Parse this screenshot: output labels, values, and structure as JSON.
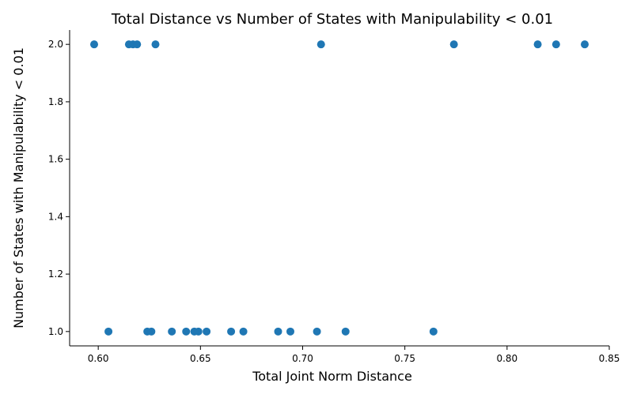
{
  "chart_data": {
    "type": "scatter",
    "title": "Total Distance vs Number of States with Manipulability < 0.01",
    "xlabel": "Total Joint Norm Distance",
    "ylabel": "Number of States with Manipulability < 0.01",
    "xlim": [
      0.586,
      0.85
    ],
    "ylim": [
      0.95,
      2.05
    ],
    "xticks": [
      0.6,
      0.65,
      0.7,
      0.75,
      0.8,
      0.85
    ],
    "xtick_labels": [
      "0.60",
      "0.65",
      "0.70",
      "0.75",
      "0.80",
      "0.85"
    ],
    "yticks": [
      1.0,
      1.2,
      1.4,
      1.6,
      1.8,
      2.0
    ],
    "ytick_labels": [
      "1.0",
      "1.2",
      "1.4",
      "1.6",
      "1.8",
      "2.0"
    ],
    "grid": false,
    "marker_color": "#1f77b4",
    "points": [
      {
        "x": 0.598,
        "y": 2
      },
      {
        "x": 0.615,
        "y": 2
      },
      {
        "x": 0.617,
        "y": 2
      },
      {
        "x": 0.619,
        "y": 2
      },
      {
        "x": 0.628,
        "y": 2
      },
      {
        "x": 0.709,
        "y": 2
      },
      {
        "x": 0.774,
        "y": 2
      },
      {
        "x": 0.815,
        "y": 2
      },
      {
        "x": 0.824,
        "y": 2
      },
      {
        "x": 0.838,
        "y": 2
      },
      {
        "x": 0.605,
        "y": 1
      },
      {
        "x": 0.624,
        "y": 1
      },
      {
        "x": 0.626,
        "y": 1
      },
      {
        "x": 0.636,
        "y": 1
      },
      {
        "x": 0.643,
        "y": 1
      },
      {
        "x": 0.647,
        "y": 1
      },
      {
        "x": 0.649,
        "y": 1
      },
      {
        "x": 0.653,
        "y": 1
      },
      {
        "x": 0.665,
        "y": 1
      },
      {
        "x": 0.671,
        "y": 1
      },
      {
        "x": 0.688,
        "y": 1
      },
      {
        "x": 0.694,
        "y": 1
      },
      {
        "x": 0.707,
        "y": 1
      },
      {
        "x": 0.721,
        "y": 1
      },
      {
        "x": 0.764,
        "y": 1
      }
    ]
  }
}
